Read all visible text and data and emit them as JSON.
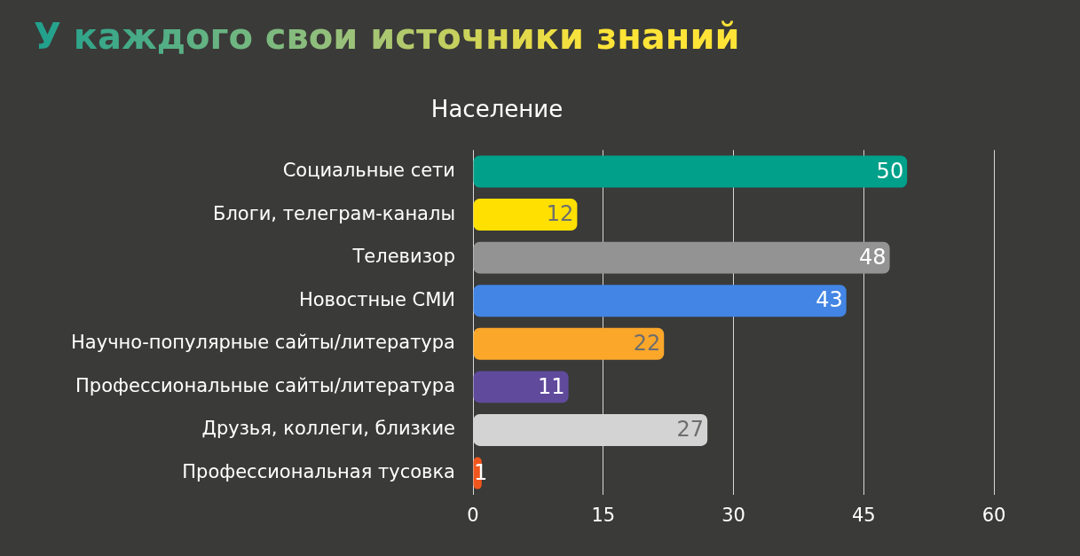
{
  "chart_data": {
    "type": "bar",
    "orientation": "horizontal",
    "title": "У каждого свои источники знаний",
    "subtitle": "Население",
    "categories": [
      "Социальные сети",
      "Блоги, телеграм-каналы",
      "Телевизор",
      "Новостные СМИ",
      "Научно-популярные сайты/литература",
      "Профессиональные сайты/литература",
      "Друзья, коллеги, близкие",
      "Профессиональная тусовка"
    ],
    "values": [
      50,
      12,
      48,
      43,
      22,
      11,
      27,
      1
    ],
    "colors": [
      "#00a08a",
      "#ffe000",
      "#939393",
      "#4285e4",
      "#fba72a",
      "#5f4a9c",
      "#d3d3d3",
      "#f0561d"
    ],
    "xlim": [
      0,
      60
    ],
    "xticks": [
      0,
      15,
      30,
      45,
      60
    ],
    "grid": "x",
    "legend": false,
    "data_labels": true
  }
}
